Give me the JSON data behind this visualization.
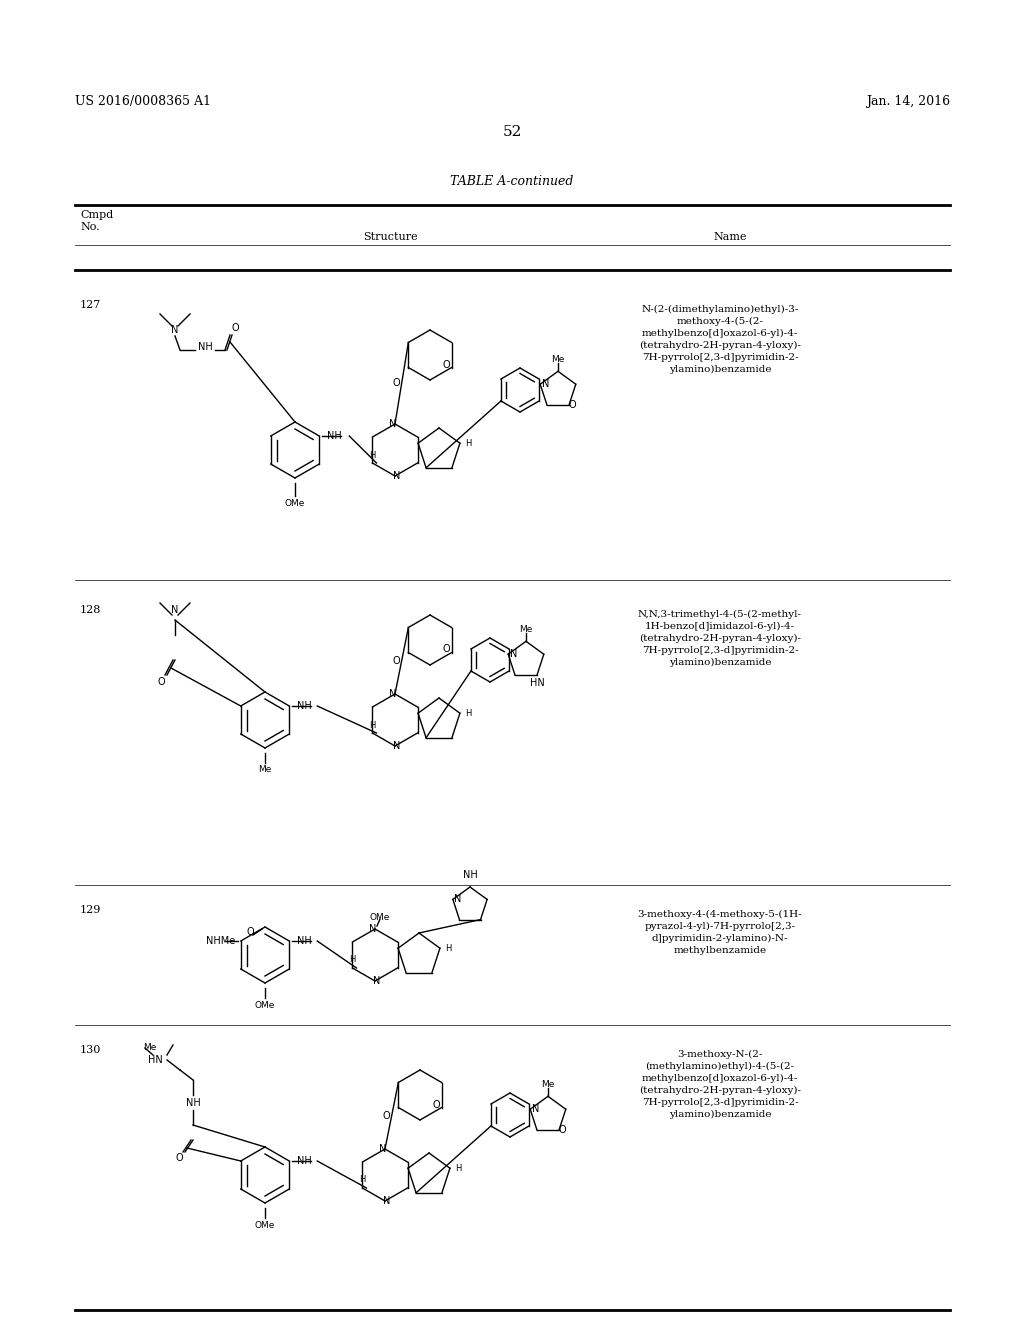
{
  "page_title_left": "US 2016/0008365 A1",
  "page_title_right": "Jan. 14, 2016",
  "page_number": "52",
  "table_title": "TABLE A-continued",
  "col_headers": [
    "Cmpd\nNo.",
    "Structure",
    "Name"
  ],
  "compounds": [
    {
      "number": "127",
      "name": "N-(2-(dimethylamino)ethyl)-3-\nmethoxy-4-(5-(2-\nmethylbenzo[d]oxazol-6-yl)-4-\n(tetrahydro-2H-pyran-4-yloxy)-\n7H-pyrrolo[2,3-d]pyrimidin-2-\nylamino)benzamide"
    },
    {
      "number": "128",
      "name": "N,N,3-trimethyl-4-(5-(2-methyl-\n1H-benzo[d]imidazol-6-yl)-4-\n(tetrahydro-2H-pyran-4-yloxy)-\n7H-pyrrolo[2,3-d]pyrimidin-2-\nylamino)benzamide"
    },
    {
      "number": "129",
      "name": "3-methoxy-4-(4-methoxy-5-(1H-\npyrazol-4-yl)-7H-pyrrolo[2,3-\nd]pyrimidin-2-ylamino)-N-\nmethylbenzamide"
    },
    {
      "number": "130",
      "name": "3-methoxy-N-(2-\n(methylamino)ethyl)-4-(5-(2-\nmethylbenzo[d]oxazol-6-yl)-4-\n(tetrahydro-2H-pyran-4-yloxy)-\n7H-pyrrolo[2,3-d]pyrimidin-2-\nylamino)benzamide"
    }
  ],
  "background_color": "#ffffff",
  "text_color": "#000000",
  "line_color": "#000000",
  "font_size_header": 9,
  "font_size_body": 8,
  "font_size_page": 9,
  "font_size_title": 9,
  "font_size_number": 10
}
